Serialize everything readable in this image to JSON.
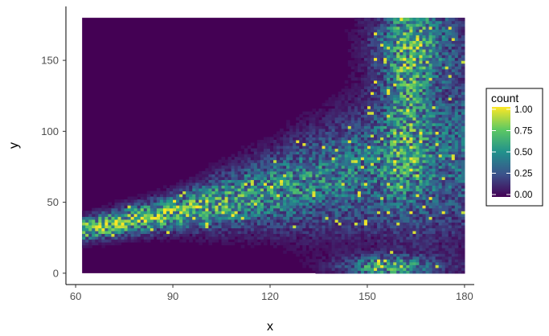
{
  "chart_data": {
    "type": "heatmap",
    "title": "",
    "xlabel": "x",
    "ylabel": "y",
    "xlim": [
      57,
      183
    ],
    "ylim": [
      -8,
      188
    ],
    "x_ticks": [
      60,
      90,
      120,
      150,
      180
    ],
    "y_ticks": [
      0,
      50,
      100,
      150
    ],
    "x_tick_labels": [
      "60",
      "90",
      "120",
      "150",
      "180"
    ],
    "y_tick_labels": [
      "0",
      "50",
      "100",
      "150"
    ],
    "data_extent": {
      "x": [
        62,
        180
      ],
      "y": [
        0,
        180
      ]
    },
    "grid": false,
    "legend": {
      "title": "count",
      "position": "right",
      "range": [
        0,
        1
      ],
      "ticks": [
        1.0,
        0.75,
        0.5,
        0.25,
        0.0
      ],
      "tick_labels": [
        "1.00",
        "0.75",
        "0.50",
        "0.25",
        "0.00"
      ]
    },
    "colormap": [
      "#440154",
      "#3b528b",
      "#21918c",
      "#5ec962",
      "#fde725"
    ],
    "density_model": {
      "description": "normalized count density of a band widening from left to right",
      "center_curve": [
        {
          "x": 62,
          "y": 31
        },
        {
          "x": 90,
          "y": 43
        },
        {
          "x": 120,
          "y": 58
        },
        {
          "x": 150,
          "y": 74
        },
        {
          "x": 180,
          "y": 85
        }
      ],
      "spread_curve": [
        {
          "x": 62,
          "y": 5
        },
        {
          "x": 90,
          "y": 8
        },
        {
          "x": 120,
          "y": 17
        },
        {
          "x": 150,
          "y": 30
        },
        {
          "x": 180,
          "y": 42
        }
      ],
      "peak_curve": [
        {
          "x": 62,
          "y": 0.8
        },
        {
          "x": 90,
          "y": 0.68
        },
        {
          "x": 120,
          "y": 0.5
        },
        {
          "x": 150,
          "y": 0.38
        },
        {
          "x": 180,
          "y": 0.34
        }
      ],
      "secondary_clusters": [
        {
          "x": 157,
          "y": 5,
          "sx": 10,
          "sy": 5,
          "peak": 0.55
        },
        {
          "x": 165,
          "y": 165,
          "sx": 9,
          "sy": 22,
          "peak": 0.45
        },
        {
          "x": 162,
          "y": 120,
          "sx": 5,
          "sy": 45,
          "peak": 0.32
        }
      ]
    }
  }
}
